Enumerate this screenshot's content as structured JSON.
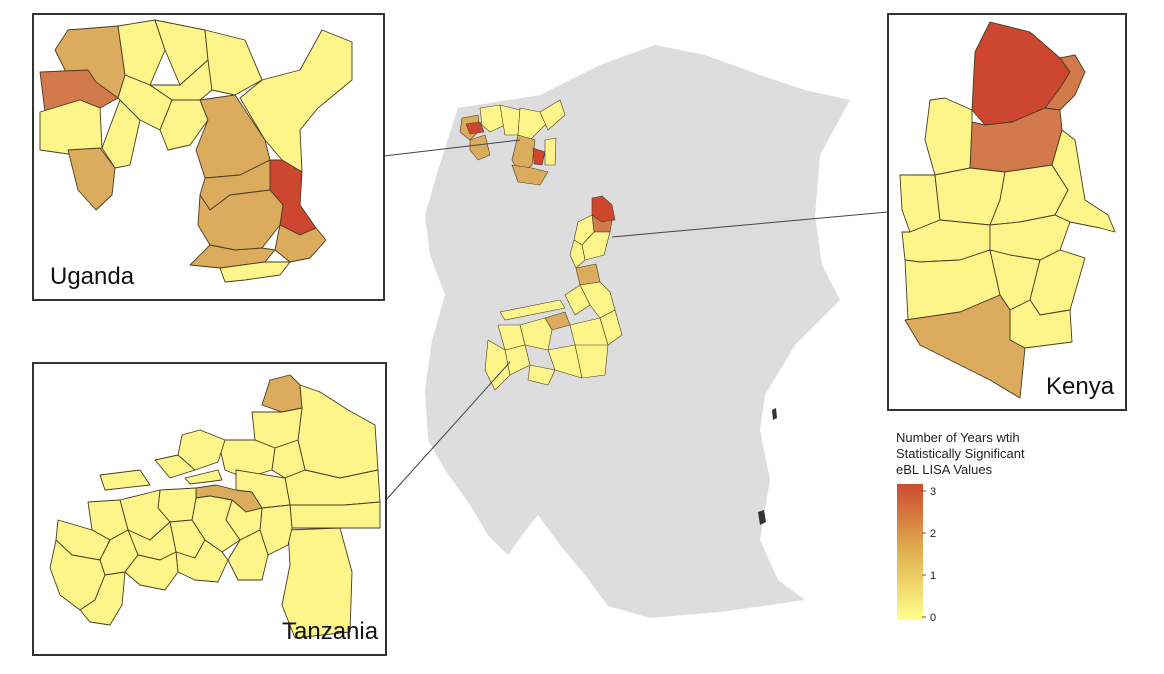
{
  "insets": {
    "uganda": {
      "label": "Uganda"
    },
    "kenya": {
      "label": "Kenya"
    },
    "tanzania": {
      "label": "Tanzania"
    }
  },
  "legend": {
    "title_lines": [
      "Number of Years wtih",
      "Statistically Significant",
      "eBL LISA Values"
    ],
    "ticks": [
      "3",
      "2",
      "1",
      "0"
    ],
    "colors": [
      "#ffff8c",
      "#e0b050",
      "#cc4b2f"
    ]
  },
  "colors": {
    "level0": "#fdf58a",
    "level1": "#dcac5e",
    "level2": "#d27a4b",
    "level3": "#cd4630",
    "land": "#dddddd"
  }
}
